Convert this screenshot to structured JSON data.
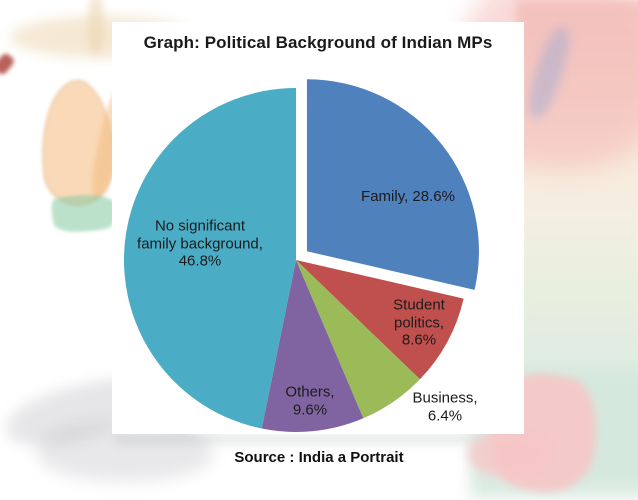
{
  "chart_data": {
    "type": "pie",
    "title": "Graph: Political Background of Indian MPs",
    "source": "Source : India a Portrait",
    "units": "percent",
    "start_angle_deg": 0,
    "direction": "clockwise",
    "legend": "none",
    "slices": [
      {
        "label": "Family",
        "value": 28.6,
        "color": "#4F81BD",
        "exploded": true
      },
      {
        "label": "Student politics",
        "value": 8.6,
        "color": "#C0504D",
        "exploded": false
      },
      {
        "label": "Business",
        "value": 6.4,
        "color": "#9BBB59",
        "exploded": false
      },
      {
        "label": "Others",
        "value": 9.6,
        "color": "#8064A2",
        "exploded": false
      },
      {
        "label": "No significant family background",
        "value": 46.8,
        "color": "#4BACC6",
        "exploded": false
      }
    ],
    "labels": [
      {
        "id": "family",
        "text": "Family, 28.6%"
      },
      {
        "id": "student-politics",
        "text": "Student\npolitics,\n8.6%"
      },
      {
        "id": "business",
        "text": "Business, 6.4%"
      },
      {
        "id": "others",
        "text": "Others,\n9.6%"
      },
      {
        "id": "no-significant",
        "text": "No significant\nfamily background,\n46.8%"
      }
    ]
  }
}
